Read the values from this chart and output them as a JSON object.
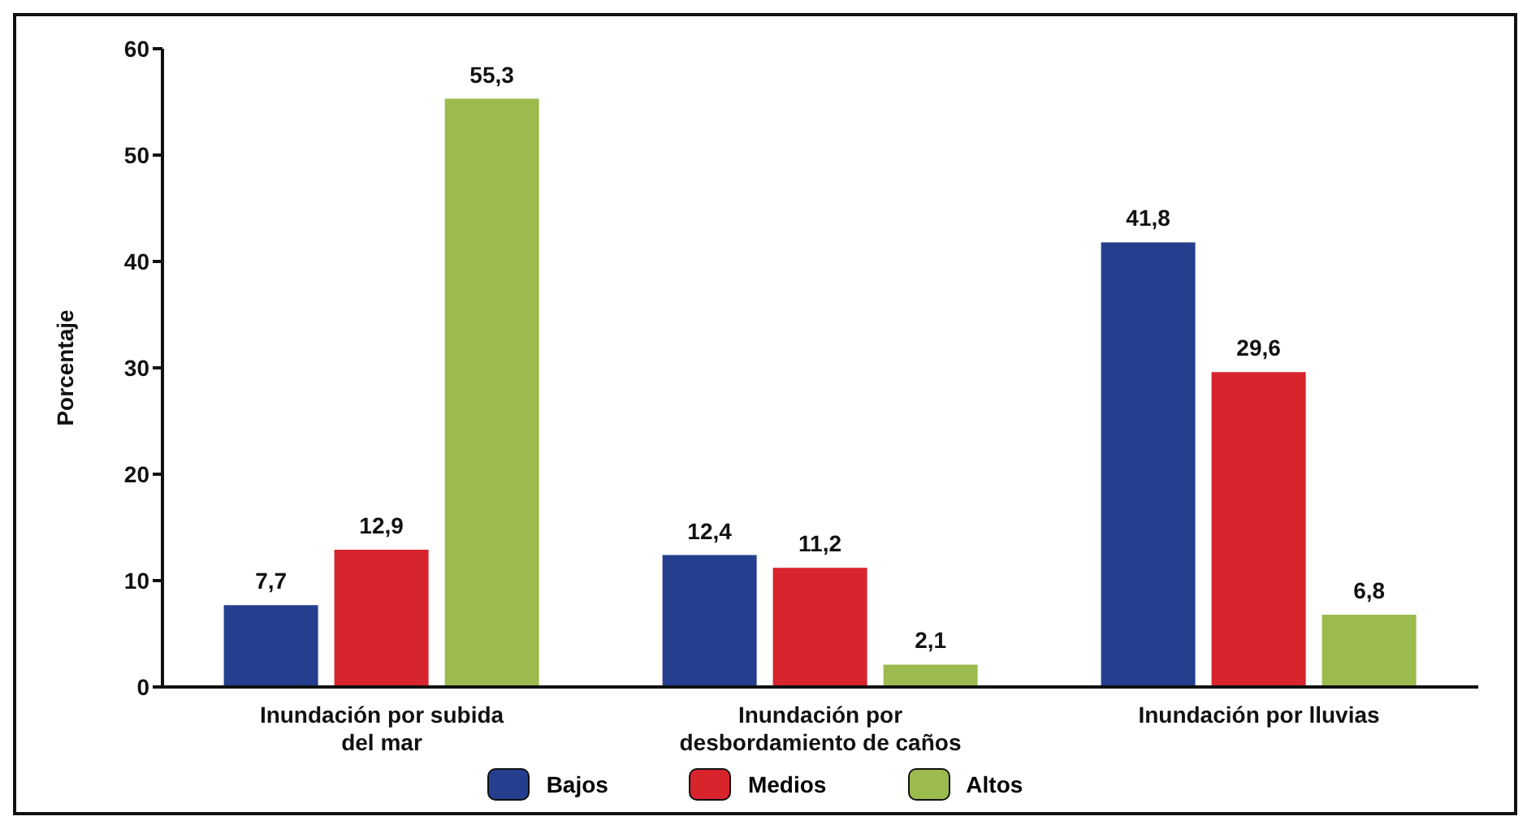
{
  "chart_data": {
    "type": "bar",
    "ylabel": "Porcentaje",
    "categories": [
      "Inundación por subida del mar",
      "Inundación por desbordamiento de caños",
      "Inundación por lluvias"
    ],
    "series": [
      {
        "name": "Bajos",
        "color": "#253f8e",
        "values": [
          7.7,
          12.4,
          41.8
        ],
        "value_labels": [
          "7,7",
          "12,4",
          "41,8"
        ]
      },
      {
        "name": "Medios",
        "color": "#d7242d",
        "values": [
          12.9,
          11.2,
          29.6
        ],
        "value_labels": [
          "12,9",
          "11,2",
          "29,6"
        ]
      },
      {
        "name": "Altos",
        "color": "#9bbb4e",
        "values": [
          55.3,
          2.1,
          6.8
        ],
        "value_labels": [
          "55,3",
          "2,1",
          "6,8"
        ]
      }
    ],
    "ylim": [
      0,
      60
    ],
    "yticks": [
      0,
      10,
      20,
      30,
      40,
      50,
      60
    ],
    "legend": "bottom"
  }
}
